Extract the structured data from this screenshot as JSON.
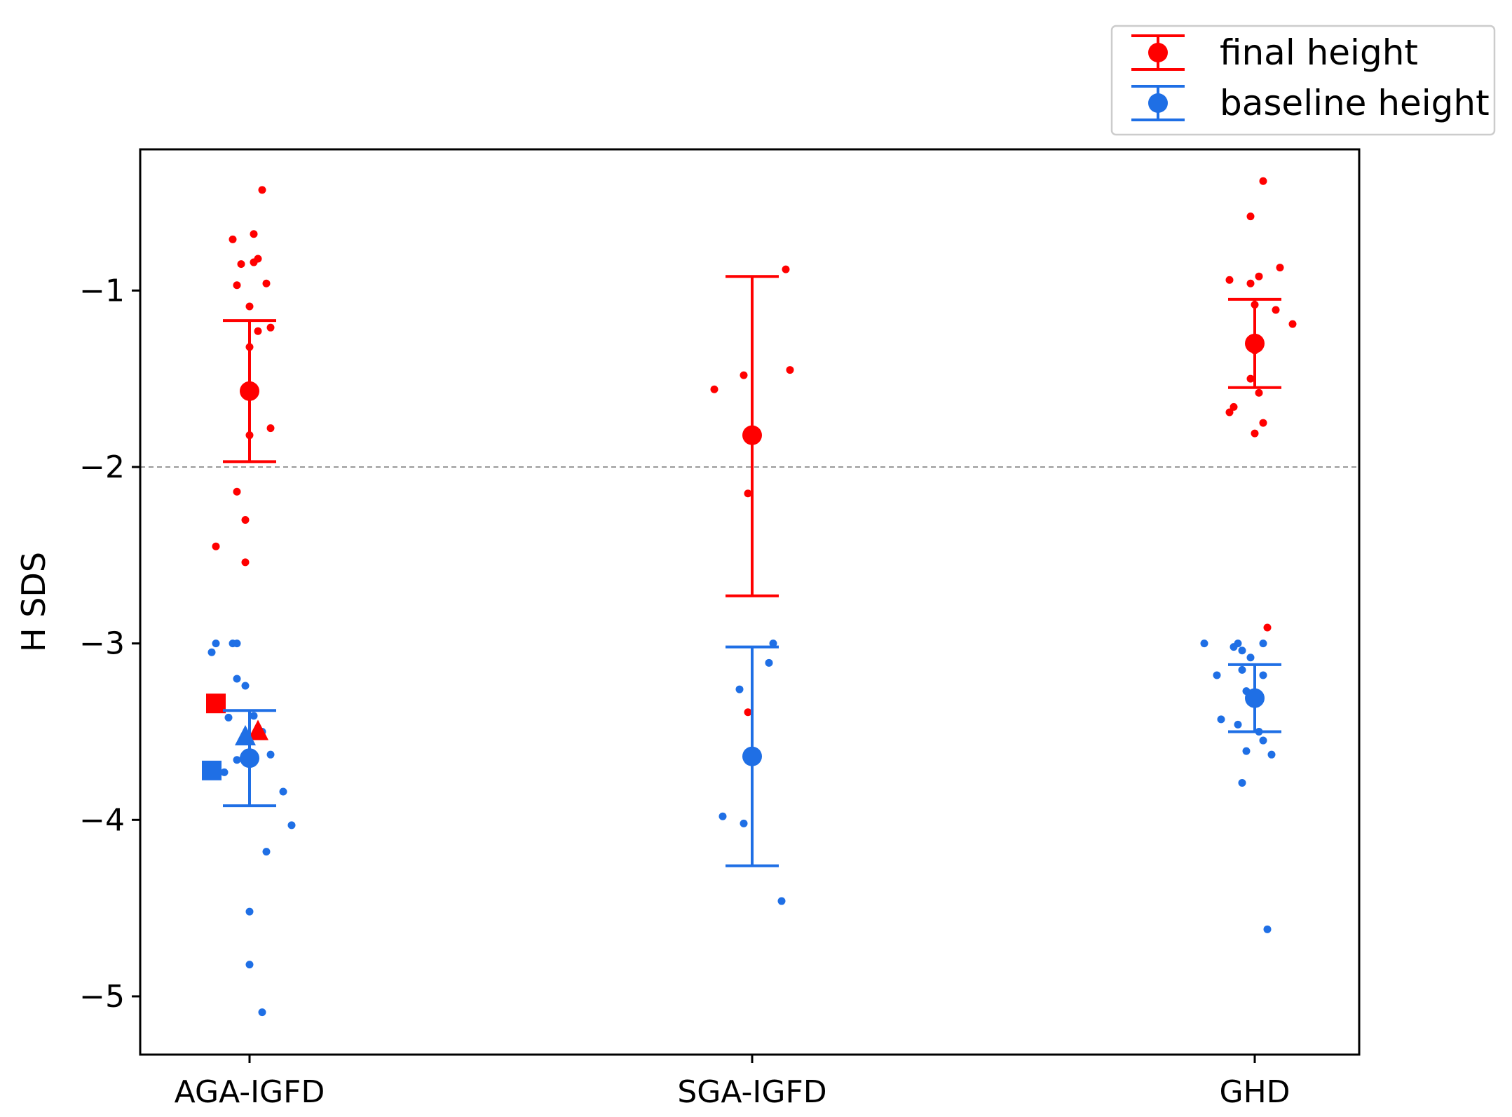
{
  "chart_data": {
    "type": "scatter",
    "title": "",
    "xlabel": "",
    "ylabel": "H SDS",
    "categories": [
      "AGA-IGFD",
      "SGA-IGFD",
      "GHD"
    ],
    "ylim": [
      -5.33,
      -0.2
    ],
    "yticks": [
      -5,
      -4,
      -3,
      -2,
      -1
    ],
    "ytick_labels": [
      "−5",
      "−4",
      "−3",
      "−2",
      "−1"
    ],
    "reference_line": {
      "y": -2,
      "style": "dashed",
      "color": "#999999"
    },
    "colors": {
      "final": "#ff0000",
      "baseline": "#1f6fe5"
    },
    "legend": {
      "position": "top-right",
      "entries": [
        {
          "label": "final height",
          "color": "#ff0000"
        },
        {
          "label": "baseline height",
          "color": "#1f6fe5"
        }
      ]
    },
    "series": [
      {
        "name": "final height",
        "color": "#ff0000",
        "summary": [
          {
            "category": "AGA-IGFD",
            "mean": -1.57,
            "lower": -1.97,
            "upper": -1.17
          },
          {
            "category": "SGA-IGFD",
            "mean": -1.82,
            "lower": -2.73,
            "upper": -0.92
          },
          {
            "category": "GHD",
            "mean": -1.3,
            "lower": -1.55,
            "upper": -1.05
          }
        ],
        "points": [
          {
            "category": "AGA-IGFD",
            "jitter": 0.03,
            "y": -0.43
          },
          {
            "category": "AGA-IGFD",
            "jitter": -0.04,
            "y": -0.71
          },
          {
            "category": "AGA-IGFD",
            "jitter": 0.01,
            "y": -0.68
          },
          {
            "category": "AGA-IGFD",
            "jitter": -0.02,
            "y": -0.85
          },
          {
            "category": "AGA-IGFD",
            "jitter": 0.02,
            "y": -0.82
          },
          {
            "category": "AGA-IGFD",
            "jitter": 0.01,
            "y": -0.84
          },
          {
            "category": "AGA-IGFD",
            "jitter": -0.03,
            "y": -0.97
          },
          {
            "category": "AGA-IGFD",
            "jitter": 0.04,
            "y": -0.96
          },
          {
            "category": "AGA-IGFD",
            "jitter": 0.0,
            "y": -1.09
          },
          {
            "category": "AGA-IGFD",
            "jitter": 0.05,
            "y": -1.21
          },
          {
            "category": "AGA-IGFD",
            "jitter": 0.02,
            "y": -1.23
          },
          {
            "category": "AGA-IGFD",
            "jitter": 0.0,
            "y": -1.32
          },
          {
            "category": "AGA-IGFD",
            "jitter": 0.05,
            "y": -1.78
          },
          {
            "category": "AGA-IGFD",
            "jitter": 0.0,
            "y": -1.82
          },
          {
            "category": "AGA-IGFD",
            "jitter": -0.03,
            "y": -2.14
          },
          {
            "category": "AGA-IGFD",
            "jitter": -0.01,
            "y": -2.3
          },
          {
            "category": "AGA-IGFD",
            "jitter": -0.08,
            "y": -2.45
          },
          {
            "category": "AGA-IGFD",
            "jitter": -0.01,
            "y": -2.54
          },
          {
            "category": "SGA-IGFD",
            "jitter": 0.08,
            "y": -0.88
          },
          {
            "category": "SGA-IGFD",
            "jitter": -0.02,
            "y": -1.48
          },
          {
            "category": "SGA-IGFD",
            "jitter": 0.09,
            "y": -1.45
          },
          {
            "category": "SGA-IGFD",
            "jitter": -0.09,
            "y": -1.56
          },
          {
            "category": "SGA-IGFD",
            "jitter": -0.01,
            "y": -2.15
          },
          {
            "category": "SGA-IGFD",
            "jitter": -0.01,
            "y": -3.39
          },
          {
            "category": "GHD",
            "jitter": 0.02,
            "y": -0.38
          },
          {
            "category": "GHD",
            "jitter": -0.01,
            "y": -0.58
          },
          {
            "category": "GHD",
            "jitter": 0.06,
            "y": -0.87
          },
          {
            "category": "GHD",
            "jitter": -0.06,
            "y": -0.94
          },
          {
            "category": "GHD",
            "jitter": -0.01,
            "y": -0.96
          },
          {
            "category": "GHD",
            "jitter": 0.01,
            "y": -0.92
          },
          {
            "category": "GHD",
            "jitter": 0.0,
            "y": -1.08
          },
          {
            "category": "GHD",
            "jitter": 0.05,
            "y": -1.11
          },
          {
            "category": "GHD",
            "jitter": 0.09,
            "y": -1.19
          },
          {
            "category": "GHD",
            "jitter": 0.0,
            "y": -1.34
          },
          {
            "category": "GHD",
            "jitter": -0.01,
            "y": -1.5
          },
          {
            "category": "GHD",
            "jitter": 0.01,
            "y": -1.58
          },
          {
            "category": "GHD",
            "jitter": -0.05,
            "y": -1.66
          },
          {
            "category": "GHD",
            "jitter": -0.06,
            "y": -1.69
          },
          {
            "category": "GHD",
            "jitter": 0.02,
            "y": -1.75
          },
          {
            "category": "GHD",
            "jitter": 0.0,
            "y": -1.81
          },
          {
            "category": "GHD",
            "jitter": 0.03,
            "y": -2.91
          }
        ]
      },
      {
        "name": "baseline height",
        "color": "#1f6fe5",
        "summary": [
          {
            "category": "AGA-IGFD",
            "mean": -3.65,
            "lower": -3.92,
            "upper": -3.38
          },
          {
            "category": "SGA-IGFD",
            "mean": -3.64,
            "lower": -4.26,
            "upper": -3.02
          },
          {
            "category": "GHD",
            "mean": -3.31,
            "lower": -3.5,
            "upper": -3.12
          }
        ],
        "points": [
          {
            "category": "AGA-IGFD",
            "jitter": -0.09,
            "y": -3.05
          },
          {
            "category": "AGA-IGFD",
            "jitter": -0.08,
            "y": -3.0
          },
          {
            "category": "AGA-IGFD",
            "jitter": -0.04,
            "y": -3.0
          },
          {
            "category": "AGA-IGFD",
            "jitter": -0.03,
            "y": -3.0
          },
          {
            "category": "AGA-IGFD",
            "jitter": -0.03,
            "y": -3.2
          },
          {
            "category": "AGA-IGFD",
            "jitter": -0.01,
            "y": -3.24
          },
          {
            "category": "AGA-IGFD",
            "jitter": -0.05,
            "y": -3.42
          },
          {
            "category": "AGA-IGFD",
            "jitter": 0.01,
            "y": -3.41
          },
          {
            "category": "AGA-IGFD",
            "jitter": 0.03,
            "y": -3.5
          },
          {
            "category": "AGA-IGFD",
            "jitter": -0.03,
            "y": -3.66
          },
          {
            "category": "AGA-IGFD",
            "jitter": 0.05,
            "y": -3.63
          },
          {
            "category": "AGA-IGFD",
            "jitter": -0.06,
            "y": -3.73
          },
          {
            "category": "AGA-IGFD",
            "jitter": 0.08,
            "y": -3.84
          },
          {
            "category": "AGA-IGFD",
            "jitter": 0.1,
            "y": -4.03
          },
          {
            "category": "AGA-IGFD",
            "jitter": 0.04,
            "y": -4.18
          },
          {
            "category": "AGA-IGFD",
            "jitter": 0.0,
            "y": -4.52
          },
          {
            "category": "AGA-IGFD",
            "jitter": 0.0,
            "y": -4.82
          },
          {
            "category": "AGA-IGFD",
            "jitter": 0.03,
            "y": -5.09
          },
          {
            "category": "SGA-IGFD",
            "jitter": 0.05,
            "y": -3.0
          },
          {
            "category": "SGA-IGFD",
            "jitter": 0.04,
            "y": -3.11
          },
          {
            "category": "SGA-IGFD",
            "jitter": -0.03,
            "y": -3.26
          },
          {
            "category": "SGA-IGFD",
            "jitter": -0.07,
            "y": -3.98
          },
          {
            "category": "SGA-IGFD",
            "jitter": -0.02,
            "y": -4.02
          },
          {
            "category": "SGA-IGFD",
            "jitter": 0.07,
            "y": -4.46
          },
          {
            "category": "GHD",
            "jitter": -0.12,
            "y": -3.0
          },
          {
            "category": "GHD",
            "jitter": -0.04,
            "y": -3.0
          },
          {
            "category": "GHD",
            "jitter": -0.05,
            "y": -3.02
          },
          {
            "category": "GHD",
            "jitter": 0.02,
            "y": -3.0
          },
          {
            "category": "GHD",
            "jitter": -0.03,
            "y": -3.04
          },
          {
            "category": "GHD",
            "jitter": -0.01,
            "y": -3.08
          },
          {
            "category": "GHD",
            "jitter": -0.03,
            "y": -3.15
          },
          {
            "category": "GHD",
            "jitter": 0.02,
            "y": -3.18
          },
          {
            "category": "GHD",
            "jitter": -0.09,
            "y": -3.18
          },
          {
            "category": "GHD",
            "jitter": -0.02,
            "y": -3.27
          },
          {
            "category": "GHD",
            "jitter": -0.08,
            "y": -3.43
          },
          {
            "category": "GHD",
            "jitter": -0.04,
            "y": -3.46
          },
          {
            "category": "GHD",
            "jitter": 0.01,
            "y": -3.5
          },
          {
            "category": "GHD",
            "jitter": 0.02,
            "y": -3.55
          },
          {
            "category": "GHD",
            "jitter": -0.02,
            "y": -3.61
          },
          {
            "category": "GHD",
            "jitter": 0.04,
            "y": -3.63
          },
          {
            "category": "GHD",
            "jitter": -0.03,
            "y": -3.79
          },
          {
            "category": "GHD",
            "jitter": 0.03,
            "y": -4.62
          }
        ]
      }
    ],
    "special_markers": [
      {
        "shape": "square",
        "series": "final height",
        "category": "AGA-IGFD",
        "jitter": -0.08,
        "y": -3.34
      },
      {
        "shape": "triangle",
        "series": "final height",
        "category": "AGA-IGFD",
        "jitter": 0.02,
        "y": -3.5
      },
      {
        "shape": "square",
        "series": "baseline height",
        "category": "AGA-IGFD",
        "jitter": -0.09,
        "y": -3.72
      },
      {
        "shape": "triangle",
        "series": "baseline height",
        "category": "AGA-IGFD",
        "jitter": -0.01,
        "y": -3.53
      }
    ]
  }
}
